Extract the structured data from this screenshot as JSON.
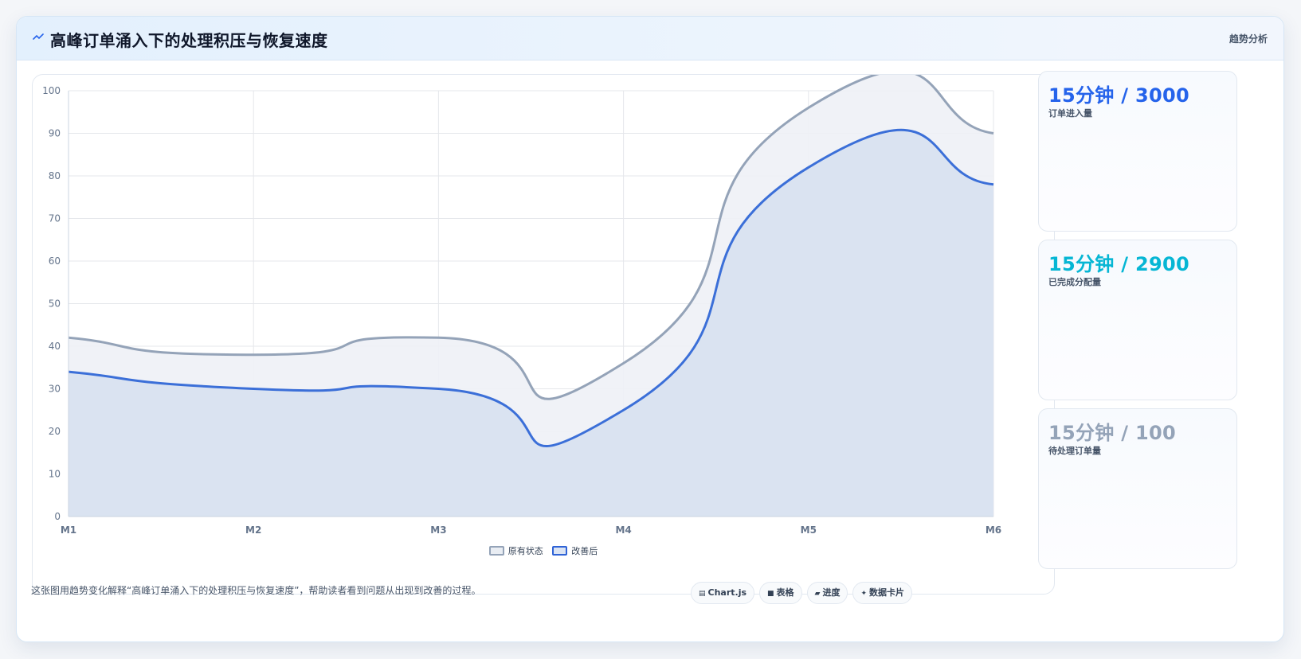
{
  "header": {
    "title": "高峰订单涌入下的处理积压与恢复速度",
    "tag": "趋势分析"
  },
  "chart_data": {
    "type": "area",
    "categories": [
      "M1",
      "M2",
      "M3",
      "M4",
      "M5",
      "M6"
    ],
    "ylim": [
      0,
      100
    ],
    "yticks": [
      0,
      10,
      20,
      30,
      40,
      50,
      60,
      70,
      80,
      90,
      100
    ],
    "grid": true,
    "legend_position": "bottom",
    "series": [
      {
        "name": "原有状态",
        "values": [
          42,
          38,
          42,
          36,
          96,
          90
        ],
        "color": "#94a3b8",
        "fill": "#eef1f6"
      },
      {
        "name": "改善后",
        "values": [
          34,
          30,
          30,
          25,
          82,
          78
        ],
        "color": "#3b6fd8",
        "fill": "#d8e1f0"
      }
    ]
  },
  "stats": [
    {
      "value": "15分钟 / 3000",
      "label": "订单进入量",
      "color": "#2563eb"
    },
    {
      "value": "15分钟 / 2900",
      "label": "已完成分配量",
      "color": "#06b6d4"
    },
    {
      "value": "15分钟 / 100",
      "label": "待处理订单量",
      "color": "#94a3b8"
    }
  ],
  "footer": {
    "description": "这张图用趋势变化解释“高峰订单涌入下的处理积压与恢复速度”，帮助读者看到问题从出现到改善的过程。",
    "pills": [
      {
        "icon": "chart-icon",
        "glyph": "▤",
        "label": "Chart.js"
      },
      {
        "icon": "table-icon",
        "glyph": "■",
        "label": "表格"
      },
      {
        "icon": "progress-icon",
        "glyph": "▰",
        "label": "进度"
      },
      {
        "icon": "card-icon",
        "glyph": "✦",
        "label": "数据卡片"
      }
    ]
  }
}
